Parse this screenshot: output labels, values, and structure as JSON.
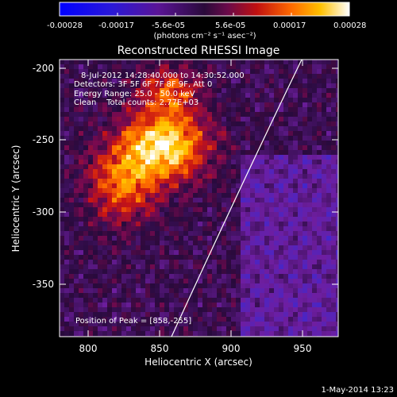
{
  "colorbar": {
    "tick_labels": [
      "-0.00028",
      "-0.00017",
      "-5.6e-05",
      "5.6e-05",
      "0.00017",
      "0.00028"
    ],
    "units_label": "(photons cm⁻² s⁻¹ asec⁻²)"
  },
  "title": "Reconstructed RHESSI Image",
  "annotations": {
    "time_range": "8-Jul-2012 14:28:40.000 to 14:30:52.000",
    "detectors": "Detectors: 3F 5F 6F 7F 8F 9F, Att 0",
    "energy_range": "Energy Range: 25.0 - 50.0 keV",
    "algorithm": "Clean    Total counts: 2.77E+03",
    "peak_position": "Position of Peak = [858,-255]"
  },
  "axes": {
    "x_label": "Heliocentric X (arcsec)",
    "y_label": "Heliocentric Y (arcsec)",
    "x_ticks": [
      "800",
      "850",
      "900",
      "950"
    ],
    "y_ticks": [
      "-200",
      "-250",
      "-300",
      "-350"
    ],
    "x_range": [
      780,
      973
    ],
    "y_range": [
      -388,
      -194
    ]
  },
  "footer": {
    "timestamp": "1-May-2014 13:23"
  },
  "colors": {
    "background": "#000000",
    "axes": "#ffffff",
    "limb_line": "#ffffff"
  }
}
